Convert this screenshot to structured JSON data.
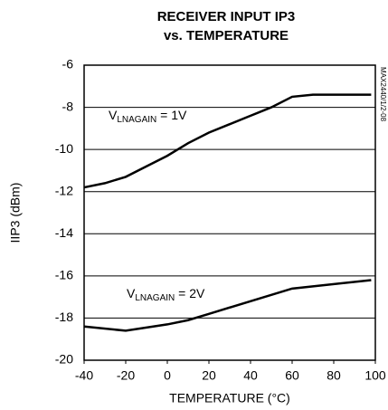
{
  "chart_data": {
    "type": "line",
    "title": [
      "RECEIVER INPUT IP3",
      "vs. TEMPERATURE"
    ],
    "xlabel": "TEMPERATURE (°C)",
    "ylabel": "IIP3 (dBm)",
    "side_note": "MAX2440/1/2-08",
    "xlim": [
      -40,
      100
    ],
    "xticks": [
      -40,
      -20,
      0,
      20,
      40,
      60,
      80,
      100
    ],
    "ylim": [
      -20,
      -6
    ],
    "yticks": [
      -20,
      -18,
      -16,
      -14,
      -12,
      -10,
      -8,
      -6
    ],
    "grid": true,
    "series": [
      {
        "name": [
          "V",
          "LNAGAIN",
          " = 1V"
        ],
        "color": "#000000",
        "x": [
          -40,
          -30,
          -20,
          -10,
          0,
          10,
          20,
          30,
          40,
          50,
          60,
          70,
          98
        ],
        "values": [
          -11.8,
          -11.6,
          -11.3,
          -10.8,
          -10.3,
          -9.7,
          -9.2,
          -8.8,
          -8.4,
          -8.0,
          -7.5,
          -7.4,
          -7.4
        ]
      },
      {
        "name": [
          "V",
          "LNAGAIN",
          " = 2V"
        ],
        "color": "#000000",
        "x": [
          -40,
          -20,
          0,
          10,
          20,
          40,
          60,
          98
        ],
        "values": [
          -18.4,
          -18.6,
          -18.3,
          -18.1,
          -17.8,
          -17.2,
          -16.6,
          -16.2
        ]
      }
    ]
  }
}
